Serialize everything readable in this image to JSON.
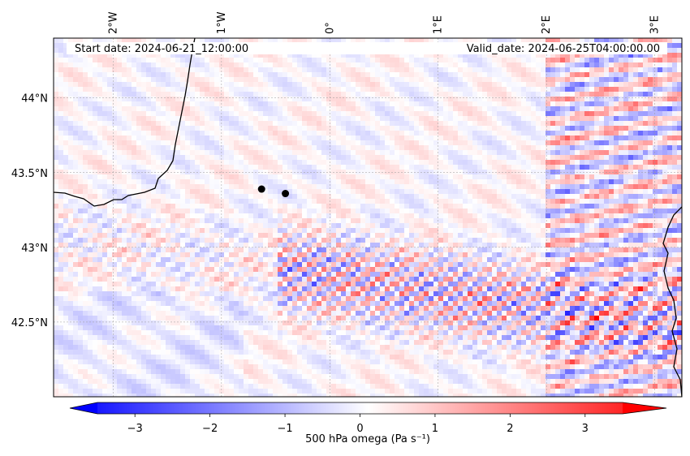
{
  "map": {
    "start_label": "Start date: 2024-06-21_12:00:00",
    "valid_label": "Valid_date: 2024-06-25T04:00:00.00",
    "lon_ticks": [
      {
        "value": -2,
        "label": "2°W"
      },
      {
        "value": -1,
        "label": "1°W"
      },
      {
        "value": 0,
        "label": "0°"
      },
      {
        "value": 1,
        "label": "1°E"
      },
      {
        "value": 2,
        "label": "2°E"
      },
      {
        "value": 3,
        "label": "3°E"
      }
    ],
    "lat_ticks": [
      {
        "value": 44.0,
        "label": "44°N"
      },
      {
        "value": 43.5,
        "label": "43.5°N"
      },
      {
        "value": 43.0,
        "label": "43°N"
      },
      {
        "value": 42.5,
        "label": "42.5°N"
      }
    ],
    "lon_range": [
      -2.55,
      3.25
    ],
    "lat_range": [
      42.0,
      44.4
    ],
    "grid": true,
    "markers": [
      {
        "lon": -0.63,
        "lat": 43.39
      },
      {
        "lon": -0.41,
        "lat": 43.36
      }
    ],
    "colors": {
      "negative": "#0000ff",
      "zero": "#ffffff",
      "positive": "#ff0000",
      "coast": "#000000",
      "marker": "#000000"
    }
  },
  "colorbar": {
    "label": "500 hPa omega (Pa s⁻¹)",
    "range": [
      -3.5,
      3.5
    ],
    "ticks": [
      {
        "value": -3,
        "label": "−3"
      },
      {
        "value": -2,
        "label": "−2"
      },
      {
        "value": -1,
        "label": "−1"
      },
      {
        "value": 0,
        "label": "0"
      },
      {
        "value": 1,
        "label": "1"
      },
      {
        "value": 2,
        "label": "2"
      },
      {
        "value": 3,
        "label": "3"
      }
    ],
    "extend": "both"
  }
}
